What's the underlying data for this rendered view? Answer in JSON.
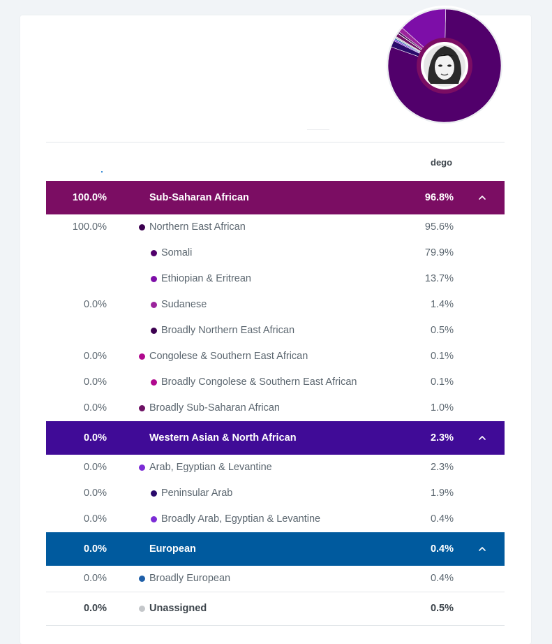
{
  "colors": {
    "sub_saharan": "#7b0d63",
    "western_asian": "#400b97",
    "european": "#005a9e",
    "unassigned": "#c4c7ca"
  },
  "header": {
    "column_label": "dego",
    "donut_shares": [
      {
        "label": "Somali",
        "value": 79.9,
        "color": "#51006b"
      },
      {
        "label": "Ethiopian & Eritrean",
        "value": 13.7,
        "color": "#7d0ea8"
      },
      {
        "label": "Sudanese",
        "value": 1.4,
        "color": "#9b239c"
      },
      {
        "label": "Broadly Northern East African",
        "value": 0.5,
        "color": "#3c0050"
      },
      {
        "label": "Congolese & Southern East African",
        "value": 0.1,
        "color": "#b0098e"
      },
      {
        "label": "Broadly Sub-Saharan African",
        "value": 1.0,
        "color": "#6d1164"
      },
      {
        "label": "Peninsular Arab",
        "value": 1.9,
        "color": "#2a0a6b"
      },
      {
        "label": "Broadly Arab, Egyptian & Levantine",
        "value": 0.4,
        "color": "#7c2cd6"
      },
      {
        "label": "Broadly European",
        "value": 0.4,
        "color": "#1f5fa8"
      },
      {
        "label": "Unassigned",
        "value": 0.5,
        "color": "#c4c7ca"
      }
    ]
  },
  "groups": [
    {
      "left": "100.0%",
      "name": "Sub-Saharan African",
      "right": "96.8%",
      "rows": [
        {
          "left": "100.0%",
          "name": "Northern East African",
          "right": "95.6%",
          "level": 0,
          "dot": "#3c0050"
        },
        {
          "left": "",
          "name": "Somali",
          "right": "79.9%",
          "level": 1,
          "dot": "#51006b"
        },
        {
          "left": "",
          "name": "Ethiopian & Eritrean",
          "right": "13.7%",
          "level": 1,
          "dot": "#7d0ea8"
        },
        {
          "left": "0.0%",
          "name": "Sudanese",
          "right": "1.4%",
          "level": 1,
          "dot": "#9b239c"
        },
        {
          "left": "",
          "name": "Broadly Northern East African",
          "right": "0.5%",
          "level": 1,
          "dot": "#3c0050"
        },
        {
          "left": "0.0%",
          "name": "Congolese & Southern East African",
          "right": "0.1%",
          "level": 0,
          "dot": "#b0098e"
        },
        {
          "left": "0.0%",
          "name": "Broadly Congolese & Southern East African",
          "right": "0.1%",
          "level": 1,
          "dot": "#b0098e"
        },
        {
          "left": "0.0%",
          "name": "Broadly Sub-Saharan African",
          "right": "1.0%",
          "level": 0,
          "dot": "#6d1164"
        }
      ]
    },
    {
      "left": "0.0%",
      "name": "Western Asian & North African",
      "right": "2.3%",
      "rows": [
        {
          "left": "0.0%",
          "name": "Arab, Egyptian & Levantine",
          "right": "2.3%",
          "level": 0,
          "dot": "#7c2cd6"
        },
        {
          "left": "0.0%",
          "name": "Peninsular Arab",
          "right": "1.9%",
          "level": 1,
          "dot": "#2a0a6b"
        },
        {
          "left": "0.0%",
          "name": "Broadly Arab, Egyptian & Levantine",
          "right": "0.4%",
          "level": 1,
          "dot": "#7c2cd6"
        }
      ]
    },
    {
      "left": "0.0%",
      "name": "European",
      "right": "0.4%",
      "rows": [
        {
          "left": "0.0%",
          "name": "Broadly European",
          "right": "0.4%",
          "level": 0,
          "dot": "#1f5fa8"
        }
      ]
    }
  ],
  "unassigned": {
    "left": "0.0%",
    "name": "Unassigned",
    "right": "0.5%",
    "dot": "#c4c7ca"
  },
  "icons": {
    "collapse": "chevron-up-icon",
    "avatar": "profile-photo"
  }
}
